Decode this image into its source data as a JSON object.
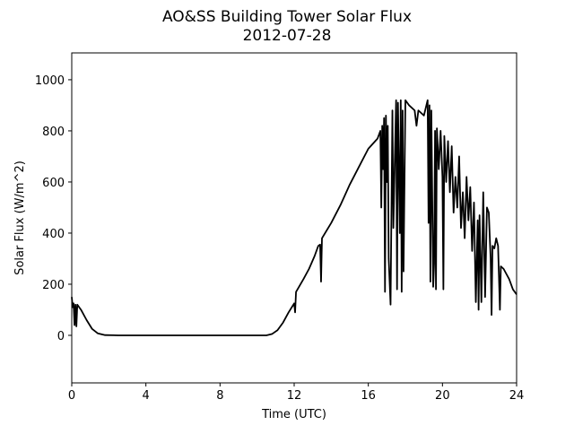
{
  "chart_data": {
    "type": "line",
    "title": "AO&SS Building Tower Solar Flux",
    "subtitle": "2012-07-28",
    "x_label": "Time (UTC)",
    "y_label": "Solar Flux (W/m^2)",
    "x": [
      0,
      0.05,
      0.1,
      0.15,
      0.2,
      0.25,
      0.3,
      0.5,
      0.8,
      1.1,
      1.4,
      1.8,
      2.5,
      10.5,
      10.8,
      11.1,
      11.4,
      11.7,
      12.0,
      12.05,
      12.1,
      12.5,
      12.8,
      13.1,
      13.3,
      13.4,
      13.45,
      13.5,
      14,
      14.5,
      15,
      15.5,
      16,
      16.5,
      16.65,
      16.7,
      16.75,
      16.8,
      16.85,
      16.9,
      16.95,
      17.0,
      17.05,
      17.1,
      17.2,
      17.3,
      17.35,
      17.5,
      17.55,
      17.6,
      17.7,
      17.75,
      17.8,
      17.85,
      17.9,
      18.0,
      18.2,
      18.5,
      18.6,
      18.7,
      19.0,
      19.2,
      19.25,
      19.3,
      19.35,
      19.4,
      19.5,
      19.55,
      19.6,
      19.65,
      19.7,
      19.8,
      19.9,
      20.0,
      20.05,
      20.1,
      20.2,
      20.3,
      20.4,
      20.5,
      20.6,
      20.7,
      20.8,
      20.9,
      21.0,
      21.1,
      21.2,
      21.3,
      21.4,
      21.5,
      21.6,
      21.7,
      21.8,
      21.9,
      21.95,
      22.0,
      22.1,
      22.2,
      22.3,
      22.4,
      22.5,
      22.6,
      22.65,
      22.7,
      22.8,
      22.9,
      23.0,
      23.1,
      23.15,
      23.3,
      23.6,
      23.8,
      24
    ],
    "series": [
      {
        "color": "#000000",
        "values": [
          150,
          110,
          125,
          40,
          120,
          35,
          120,
          100,
          60,
          25,
          8,
          1,
          0,
          0,
          5,
          20,
          50,
          90,
          125,
          90,
          170,
          220,
          260,
          310,
          350,
          355,
          210,
          380,
          440,
          510,
          590,
          660,
          730,
          770,
          800,
          500,
          820,
          650,
          850,
          170,
          860,
          600,
          820,
          300,
          120,
          880,
          420,
          920,
          180,
          910,
          400,
          920,
          170,
          880,
          250,
          920,
          900,
          880,
          820,
          880,
          860,
          920,
          440,
          900,
          210,
          880,
          190,
          280,
          800,
          180,
          810,
          650,
          800,
          620,
          180,
          780,
          600,
          760,
          560,
          740,
          480,
          620,
          500,
          700,
          420,
          560,
          380,
          620,
          450,
          580,
          330,
          520,
          130,
          450,
          100,
          470,
          130,
          560,
          150,
          500,
          480,
          300,
          80,
          350,
          340,
          380,
          350,
          100,
          270,
          260,
          220,
          180,
          160
        ]
      }
    ],
    "xlim": [
      0,
      24
    ],
    "xticks": [
      0,
      4,
      8,
      12,
      16,
      20,
      24
    ],
    "ylim": [
      -186,
      1105
    ],
    "yticks": [
      0,
      200,
      400,
      600,
      800,
      1000
    ]
  }
}
